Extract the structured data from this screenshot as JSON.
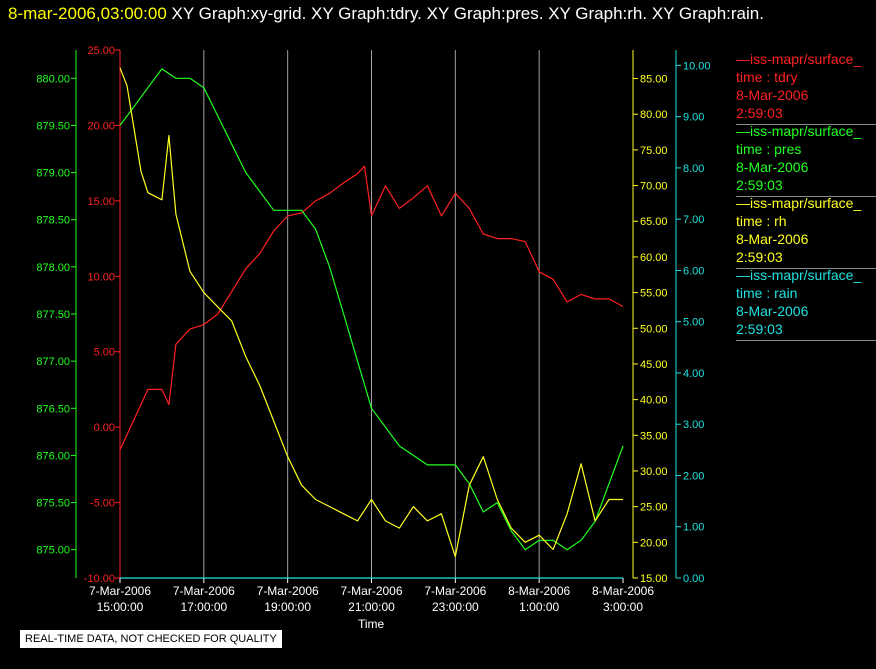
{
  "header": {
    "time": "8-mar-2006,03:00:00",
    "graphs": "XY Graph:xy-grid.  XY Graph:tdry.  XY Graph:pres.  XY Graph:rh.  XY Graph:rain."
  },
  "colors": {
    "tdry": "#ff2020",
    "pres": "#20ff20",
    "rh": "#ffff20",
    "rain": "#20e0e0",
    "grid": "#a0a0a0"
  },
  "legend": [
    {
      "source": "—iss-mapr/surface_",
      "field": "time : tdry",
      "date": "8-Mar-2006",
      "time": "2:59:03",
      "color": "#ff2020"
    },
    {
      "source": "—iss-mapr/surface_",
      "field": "time : pres",
      "date": "8-Mar-2006",
      "time": "2:59:03",
      "color": "#20ff20"
    },
    {
      "source": "—iss-mapr/surface_",
      "field": "time : rh",
      "date": "8-Mar-2006",
      "time": "2:59:03",
      "color": "#ffff20"
    },
    {
      "source": "—iss-mapr/surface_",
      "field": "time : rain",
      "date": "8-Mar-2006",
      "time": "2:59:03",
      "color": "#20e0e0"
    }
  ],
  "footer": "REAL-TIME DATA, NOT CHECKED FOR QUALITY",
  "chart_data": {
    "type": "line",
    "xlabel": "Time",
    "x_ticks": [
      [
        "7-Mar-2006",
        "15:00:00"
      ],
      [
        "7-Mar-2006",
        "17:00:00"
      ],
      [
        "7-Mar-2006",
        "19:00:00"
      ],
      [
        "7-Mar-2006",
        "21:00:00"
      ],
      [
        "7-Mar-2006",
        "23:00:00"
      ],
      [
        "8-Mar-2006",
        "1:00:00"
      ],
      [
        "8-Mar-2006",
        "3:00:00"
      ]
    ],
    "xlim": [
      "2006-03-07 15:00",
      "2006-03-08 03:00"
    ],
    "grid": "vertical",
    "axes": {
      "tdry": {
        "ylim": [
          -10,
          25
        ],
        "ticks": [
          "-10.00",
          "-5.00",
          "0.00",
          "5.00",
          "10.00",
          "15.00",
          "20.00",
          "25.00"
        ]
      },
      "pres": {
        "ylim": [
          874.7,
          880.3
        ],
        "ticks": [
          "875.00",
          "875.50",
          "876.00",
          "876.50",
          "877.00",
          "877.50",
          "878.00",
          "878.50",
          "879.00",
          "879.50",
          "880.00"
        ]
      },
      "rh": {
        "ylim": [
          15,
          89
        ],
        "ticks": [
          "15.00",
          "20.00",
          "25.00",
          "30.00",
          "35.00",
          "40.00",
          "45.00",
          "50.00",
          "55.00",
          "60.00",
          "65.00",
          "70.00",
          "75.00",
          "80.00",
          "85.00"
        ]
      },
      "rain": {
        "ylim": [
          0,
          10.3
        ],
        "ticks": [
          "0.00",
          "1.00",
          "2.00",
          "3.00",
          "4.00",
          "5.00",
          "6.00",
          "7.00",
          "8.00",
          "9.00",
          "10.00"
        ]
      }
    },
    "series": [
      {
        "name": "time : tdry",
        "axis": "tdry",
        "x": [
          "2006-03-07 15:00",
          "2006-03-07 15:20",
          "2006-03-07 15:40",
          "2006-03-07 16:00",
          "2006-03-07 16:10",
          "2006-03-07 16:20",
          "2006-03-07 16:40",
          "2006-03-07 17:00",
          "2006-03-07 17:20",
          "2006-03-07 17:40",
          "2006-03-07 18:00",
          "2006-03-07 18:20",
          "2006-03-07 18:40",
          "2006-03-07 19:00",
          "2006-03-07 19:20",
          "2006-03-07 19:40",
          "2006-03-07 20:00",
          "2006-03-07 20:20",
          "2006-03-07 20:40",
          "2006-03-07 20:50",
          "2006-03-07 21:00",
          "2006-03-07 21:20",
          "2006-03-07 21:40",
          "2006-03-07 22:00",
          "2006-03-07 22:20",
          "2006-03-07 22:40",
          "2006-03-07 23:00",
          "2006-03-07 23:20",
          "2006-03-07 23:40",
          "2006-03-08 00:00",
          "2006-03-08 00:20",
          "2006-03-08 00:40",
          "2006-03-08 01:00",
          "2006-03-08 01:20",
          "2006-03-08 01:40",
          "2006-03-08 02:00",
          "2006-03-08 02:20",
          "2006-03-08 02:40",
          "2006-03-08 03:00"
        ],
        "y": [
          -1.5,
          0.5,
          2.5,
          2.5,
          1.5,
          5.5,
          6.5,
          6.8,
          7.5,
          9,
          10.5,
          11.5,
          13,
          14,
          14.2,
          15,
          15.5,
          16.2,
          16.8,
          17.3,
          14,
          16,
          14.5,
          15.2,
          16,
          14,
          15.5,
          14.5,
          12.8,
          12.5,
          12.5,
          12.3,
          10.3,
          9.8,
          8.3,
          8.8,
          8.5,
          8.5,
          8
        ],
        "color": "#ff2020"
      },
      {
        "name": "time : pres",
        "axis": "pres",
        "x": [
          "2006-03-07 15:00",
          "2006-03-07 15:20",
          "2006-03-07 15:40",
          "2006-03-07 16:00",
          "2006-03-07 16:20",
          "2006-03-07 16:40",
          "2006-03-07 17:00",
          "2006-03-07 17:20",
          "2006-03-07 17:40",
          "2006-03-07 18:00",
          "2006-03-07 18:20",
          "2006-03-07 18:40",
          "2006-03-07 19:00",
          "2006-03-07 19:20",
          "2006-03-07 19:40",
          "2006-03-07 20:00",
          "2006-03-07 20:20",
          "2006-03-07 20:40",
          "2006-03-07 21:00",
          "2006-03-07 21:20",
          "2006-03-07 21:40",
          "2006-03-07 22:00",
          "2006-03-07 22:20",
          "2006-03-07 22:40",
          "2006-03-07 23:00",
          "2006-03-07 23:20",
          "2006-03-07 23:40",
          "2006-03-08 00:00",
          "2006-03-08 00:20",
          "2006-03-08 00:40",
          "2006-03-08 01:00",
          "2006-03-08 01:20",
          "2006-03-08 01:40",
          "2006-03-08 02:00",
          "2006-03-08 02:20",
          "2006-03-08 02:40",
          "2006-03-08 03:00"
        ],
        "y": [
          879.5,
          879.7,
          879.9,
          880.1,
          880.0,
          880.0,
          879.9,
          879.6,
          879.3,
          879.0,
          878.8,
          878.6,
          878.6,
          878.6,
          878.4,
          878.0,
          877.5,
          877.0,
          876.5,
          876.3,
          876.1,
          876.0,
          875.9,
          875.9,
          875.9,
          875.7,
          875.4,
          875.5,
          875.2,
          875.0,
          875.1,
          875.1,
          875.0,
          875.1,
          875.3,
          875.7,
          876.1
        ],
        "color": "#20ff20"
      },
      {
        "name": "time : rh",
        "axis": "rh",
        "x": [
          "2006-03-07 15:00",
          "2006-03-07 15:10",
          "2006-03-07 15:20",
          "2006-03-07 15:30",
          "2006-03-07 15:40",
          "2006-03-07 16:00",
          "2006-03-07 16:10",
          "2006-03-07 16:20",
          "2006-03-07 16:30",
          "2006-03-07 16:40",
          "2006-03-07 17:00",
          "2006-03-07 17:20",
          "2006-03-07 17:40",
          "2006-03-07 18:00",
          "2006-03-07 18:20",
          "2006-03-07 18:40",
          "2006-03-07 19:00",
          "2006-03-07 19:20",
          "2006-03-07 19:40",
          "2006-03-07 20:00",
          "2006-03-07 20:20",
          "2006-03-07 20:40",
          "2006-03-07 21:00",
          "2006-03-07 21:20",
          "2006-03-07 21:40",
          "2006-03-07 22:00",
          "2006-03-07 22:20",
          "2006-03-07 22:40",
          "2006-03-07 23:00",
          "2006-03-07 23:20",
          "2006-03-07 23:40",
          "2006-03-08 00:00",
          "2006-03-08 00:20",
          "2006-03-08 00:40",
          "2006-03-08 01:00",
          "2006-03-08 01:20",
          "2006-03-08 01:40",
          "2006-03-08 02:00",
          "2006-03-08 02:20",
          "2006-03-08 02:40",
          "2006-03-08 03:00"
        ],
        "y": [
          86.5,
          84,
          78,
          72,
          69,
          68,
          77,
          66,
          62,
          58,
          55,
          53,
          51,
          46,
          42,
          37,
          32,
          28,
          26,
          25,
          24,
          23,
          26,
          23,
          22,
          25,
          23,
          24,
          18,
          28,
          32,
          26,
          22,
          20,
          21,
          19,
          24,
          31,
          23,
          26,
          26
        ],
        "color": "#ffff20"
      },
      {
        "name": "time : rain",
        "axis": "rain",
        "x": [
          "2006-03-07 15:00",
          "2006-03-08 03:00"
        ],
        "y": [
          0.0,
          0.0
        ],
        "color": "#20e0e0"
      }
    ]
  }
}
